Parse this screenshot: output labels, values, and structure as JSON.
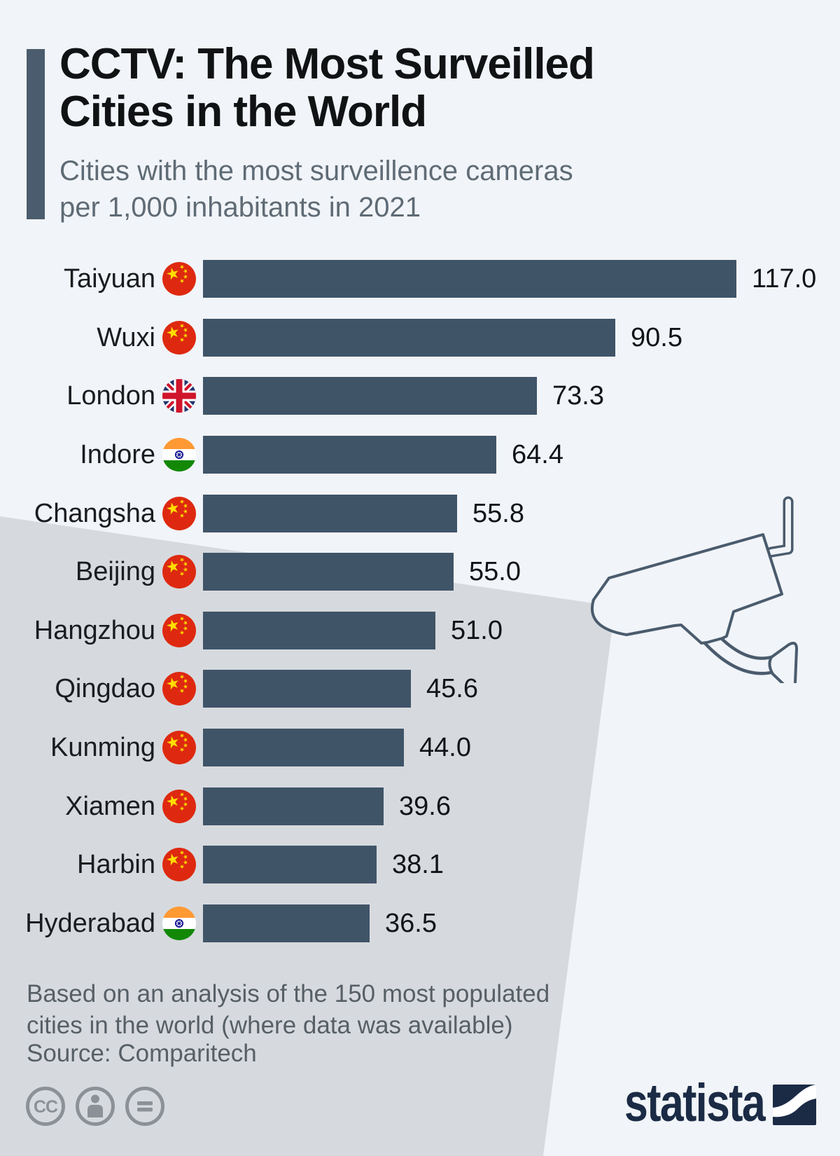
{
  "header": {
    "title_line1": "CCTV: The Most Surveilled",
    "title_line2": "Cities in the World",
    "subtitle_line1": "Cities with the most surveillence cameras",
    "subtitle_line2": "per 1,000 inhabitants in 2021"
  },
  "chart_data": {
    "type": "bar",
    "orientation": "horizontal",
    "title": "CCTV: The Most Surveilled Cities in the World",
    "unit": "surveillance cameras per 1,000 inhabitants",
    "year": "2021",
    "categories": [
      "Taiyuan",
      "Wuxi",
      "London",
      "Indore",
      "Changsha",
      "Beijing",
      "Hangzhou",
      "Qingdao",
      "Kunming",
      "Xiamen",
      "Harbin",
      "Hyderabad"
    ],
    "values": [
      117.0,
      90.5,
      73.3,
      64.4,
      55.8,
      55.0,
      51.0,
      45.6,
      44.0,
      39.6,
      38.1,
      36.5
    ],
    "countries": [
      "china",
      "china",
      "uk",
      "india",
      "china",
      "china",
      "china",
      "china",
      "china",
      "china",
      "china",
      "india"
    ],
    "value_labels": [
      "117.0",
      "90.5",
      "73.3",
      "64.4",
      "55.8",
      "55.0",
      "51.0",
      "45.6",
      "44.0",
      "39.6",
      "38.1",
      "36.5"
    ],
    "xlim": [
      0,
      117
    ],
    "grid": false,
    "legend": false,
    "bar_color": "#405468"
  },
  "footer": {
    "note_line1": "Based on an analysis of the 150 most populated",
    "note_line2": "cities in the world (where data was available)",
    "source": "Source: Comparitech",
    "license_icons": [
      "cc",
      "attribution",
      "no-derivatives"
    ],
    "brand": "statista"
  },
  "colors": {
    "background": "#f1f4f8",
    "beam_gray": "#d6dade",
    "bar": "#405468",
    "accent_bar": "#4a5c6d",
    "camera_stroke": "#4a5b6d",
    "statista_navy": "#1b2b45",
    "subtitle_text": "#5f6b75",
    "footer_text": "#575f66",
    "license_gray": "#8b9196",
    "china_red": "#de2910",
    "china_gold": "#ffde00",
    "uk_blue": "#24356f",
    "uk_red": "#cf142b",
    "uk_white": "#ffffff",
    "india_saffron": "#ff9933",
    "india_white": "#ffffff",
    "india_green": "#138807",
    "india_navy": "#000088"
  }
}
